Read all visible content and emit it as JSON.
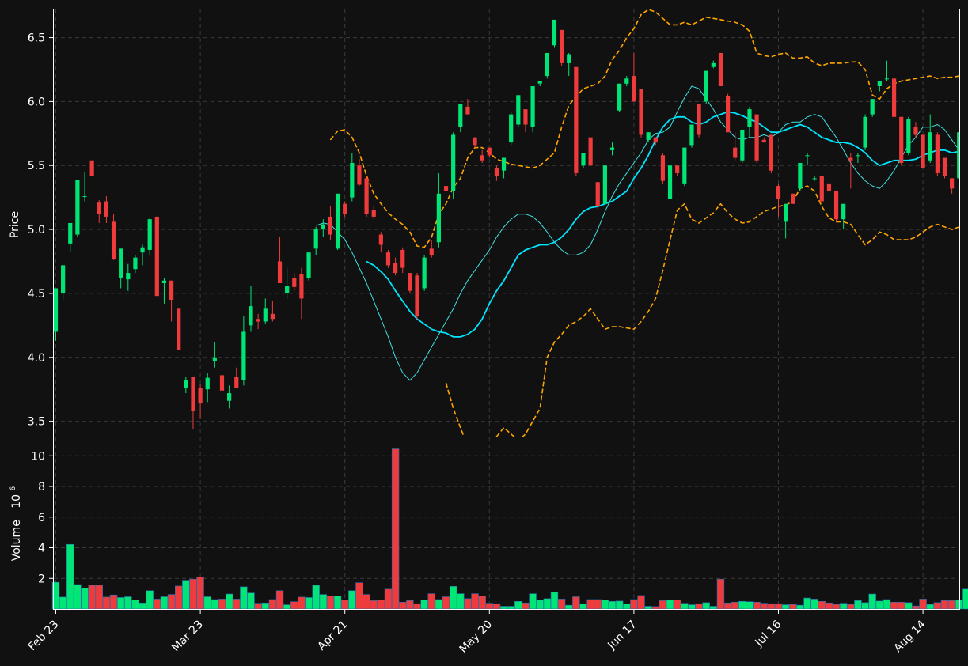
{
  "chart_data": [
    {
      "type": "candlestick",
      "ylabel": "Price",
      "ylim": [
        3.38,
        6.72
      ],
      "yticks": [
        "3.5",
        "4.0",
        "4.5",
        "5.0",
        "5.5",
        "6.0",
        "6.5"
      ],
      "grid": true,
      "series_meta": [
        {
          "key": "bollinger_upper",
          "style": "dashed",
          "color": "#ffa500"
        },
        {
          "key": "bollinger_lower",
          "style": "dashed",
          "color": "#ffa500"
        },
        {
          "key": "ma_short",
          "style": "solid",
          "color": "#40e0e0"
        },
        {
          "key": "ma_long",
          "style": "solid",
          "color": "#00e5ff"
        }
      ],
      "candles_ohlc": [
        [
          4.2,
          4.54,
          4.13,
          4.54
        ],
        [
          4.5,
          4.72,
          4.45,
          4.72
        ],
        [
          4.89,
          5.05,
          4.82,
          5.05
        ],
        [
          4.96,
          5.39,
          4.94,
          5.39
        ],
        [
          5.26,
          5.45,
          5.22,
          5.26
        ],
        [
          5.54,
          5.54,
          5.42,
          5.42
        ],
        [
          5.21,
          5.23,
          5.05,
          5.12
        ],
        [
          5.22,
          5.26,
          5.05,
          5.1
        ],
        [
          5.06,
          5.12,
          4.76,
          4.77
        ],
        [
          4.62,
          4.85,
          4.54,
          4.85
        ],
        [
          4.61,
          4.73,
          4.52,
          4.66
        ],
        [
          4.69,
          4.8,
          4.66,
          4.78
        ],
        [
          4.82,
          4.88,
          4.72,
          4.86
        ],
        [
          4.84,
          5.09,
          4.8,
          5.08
        ],
        [
          5.1,
          5.1,
          4.48,
          4.48
        ],
        [
          4.58,
          4.62,
          4.42,
          4.6
        ],
        [
          4.6,
          4.6,
          4.28,
          4.45
        ],
        [
          4.38,
          4.38,
          4.06,
          4.06
        ],
        [
          3.76,
          3.85,
          3.72,
          3.82
        ],
        [
          3.85,
          3.85,
          3.44,
          3.58
        ],
        [
          3.76,
          3.79,
          3.52,
          3.64
        ],
        [
          3.75,
          3.88,
          3.65,
          3.84
        ],
        [
          3.97,
          4.12,
          3.92,
          4.0
        ],
        [
          3.86,
          3.86,
          3.61,
          3.74
        ],
        [
          3.66,
          3.78,
          3.6,
          3.72
        ],
        [
          3.85,
          3.92,
          3.76,
          3.76
        ],
        [
          3.82,
          4.32,
          3.78,
          4.2
        ],
        [
          4.25,
          4.56,
          4.2,
          4.4
        ],
        [
          4.3,
          4.34,
          4.22,
          4.28
        ],
        [
          4.28,
          4.46,
          4.26,
          4.38
        ],
        [
          4.34,
          4.44,
          4.28,
          4.3
        ],
        [
          4.75,
          4.94,
          4.58,
          4.58
        ],
        [
          4.5,
          4.7,
          4.46,
          4.56
        ],
        [
          4.62,
          4.66,
          4.52,
          4.55
        ],
        [
          4.65,
          4.7,
          4.3,
          4.46
        ],
        [
          4.62,
          4.82,
          4.6,
          4.82
        ],
        [
          4.85,
          5.02,
          4.8,
          5.0
        ],
        [
          5.0,
          5.08,
          4.94,
          5.04
        ],
        [
          5.1,
          5.18,
          4.92,
          4.96
        ],
        [
          4.85,
          5.28,
          4.84,
          5.28
        ],
        [
          5.2,
          5.22,
          5.1,
          5.12
        ],
        [
          5.25,
          5.6,
          5.22,
          5.52
        ],
        [
          5.5,
          5.55,
          5.34,
          5.35
        ],
        [
          5.4,
          5.42,
          5.1,
          5.12
        ],
        [
          5.15,
          5.18,
          5.08,
          5.1
        ],
        [
          4.96,
          4.98,
          4.82,
          4.88
        ],
        [
          4.82,
          4.84,
          4.7,
          4.72
        ],
        [
          4.74,
          4.78,
          4.64,
          4.66
        ],
        [
          4.84,
          4.86,
          4.66,
          4.7
        ],
        [
          4.66,
          4.66,
          4.5,
          4.52
        ],
        [
          4.64,
          4.66,
          4.3,
          4.32
        ],
        [
          4.54,
          4.8,
          4.52,
          4.78
        ],
        [
          4.85,
          4.92,
          4.78,
          4.8
        ],
        [
          4.9,
          5.44,
          4.86,
          5.28
        ],
        [
          5.34,
          5.38,
          5.3,
          5.3
        ],
        [
          5.3,
          5.76,
          5.24,
          5.74
        ],
        [
          5.8,
          5.98,
          5.76,
          5.98
        ],
        [
          5.96,
          6.02,
          5.9,
          5.9
        ],
        [
          5.72,
          5.72,
          5.64,
          5.66
        ],
        [
          5.58,
          5.62,
          5.52,
          5.54
        ],
        [
          5.64,
          5.64,
          5.56,
          5.58
        ],
        [
          5.48,
          5.5,
          5.38,
          5.42
        ],
        [
          5.46,
          5.56,
          5.4,
          5.56
        ],
        [
          5.68,
          5.92,
          5.66,
          5.9
        ],
        [
          5.82,
          6.05,
          5.8,
          6.05
        ],
        [
          5.94,
          5.94,
          5.76,
          5.82
        ],
        [
          5.8,
          6.12,
          5.76,
          6.12
        ],
        [
          6.14,
          6.14,
          6.12,
          6.16
        ],
        [
          6.2,
          6.38,
          6.18,
          6.38
        ],
        [
          6.44,
          6.64,
          6.42,
          6.64
        ],
        [
          6.56,
          6.56,
          6.28,
          6.3
        ],
        [
          6.3,
          6.38,
          6.2,
          6.37
        ],
        [
          6.27,
          6.27,
          5.42,
          5.44
        ],
        [
          5.5,
          5.6,
          5.48,
          5.6
        ],
        [
          5.72,
          5.72,
          5.5,
          5.5
        ],
        [
          5.37,
          5.37,
          5.15,
          5.18
        ],
        [
          5.2,
          5.5,
          5.18,
          5.5
        ],
        [
          5.62,
          5.68,
          5.58,
          5.64
        ],
        [
          5.93,
          6.14,
          5.92,
          6.14
        ],
        [
          6.14,
          6.2,
          6.12,
          6.18
        ],
        [
          6.2,
          6.38,
          6.0,
          6.0
        ],
        [
          6.1,
          6.1,
          5.72,
          5.74
        ],
        [
          5.7,
          5.76,
          5.68,
          5.76
        ],
        [
          5.72,
          5.72,
          5.66,
          5.68
        ],
        [
          5.58,
          5.6,
          5.36,
          5.38
        ],
        [
          5.24,
          5.52,
          5.22,
          5.5
        ],
        [
          5.5,
          5.5,
          5.42,
          5.44
        ],
        [
          5.36,
          5.64,
          5.34,
          5.64
        ],
        [
          5.66,
          5.82,
          5.64,
          5.82
        ],
        [
          5.98,
          5.98,
          5.72,
          5.74
        ],
        [
          6.0,
          6.24,
          5.98,
          6.24
        ],
        [
          6.27,
          6.32,
          6.26,
          6.3
        ],
        [
          6.38,
          6.38,
          6.12,
          6.12
        ],
        [
          6.04,
          6.06,
          5.76,
          5.76
        ],
        [
          5.64,
          5.76,
          5.54,
          5.56
        ],
        [
          5.54,
          5.78,
          5.52,
          5.78
        ],
        [
          5.8,
          5.96,
          5.72,
          5.94
        ],
        [
          5.9,
          5.9,
          5.52,
          5.54
        ],
        [
          5.7,
          5.72,
          5.68,
          5.68
        ],
        [
          5.74,
          5.74,
          5.44,
          5.46
        ],
        [
          5.34,
          5.36,
          5.1,
          5.24
        ],
        [
          5.06,
          5.2,
          4.93,
          5.2
        ],
        [
          5.28,
          5.28,
          5.2,
          5.2
        ],
        [
          5.32,
          5.52,
          5.3,
          5.52
        ],
        [
          5.58,
          5.6,
          5.5,
          5.58
        ],
        [
          5.4,
          5.42,
          5.38,
          5.4
        ],
        [
          5.42,
          5.42,
          5.2,
          5.22
        ],
        [
          5.36,
          5.36,
          5.3,
          5.3
        ],
        [
          5.3,
          5.3,
          5.06,
          5.08
        ],
        [
          5.08,
          5.2,
          5.0,
          5.2
        ],
        [
          5.56,
          5.6,
          5.32,
          5.54
        ],
        [
          5.58,
          5.6,
          5.52,
          5.58
        ],
        [
          5.64,
          5.9,
          5.62,
          5.88
        ],
        [
          5.9,
          6.02,
          5.88,
          6.02
        ],
        [
          6.12,
          6.16,
          6.08,
          6.16
        ],
        [
          6.18,
          6.32,
          6.16,
          6.18
        ],
        [
          6.18,
          6.18,
          5.88,
          5.88
        ],
        [
          5.88,
          5.88,
          5.5,
          5.52
        ],
        [
          5.6,
          5.88,
          5.58,
          5.86
        ],
        [
          5.8,
          5.84,
          5.72,
          5.74
        ],
        [
          5.74,
          5.74,
          5.48,
          5.48
        ],
        [
          5.54,
          5.9,
          5.52,
          5.76
        ],
        [
          5.74,
          5.76,
          5.42,
          5.44
        ],
        [
          5.56,
          5.56,
          5.4,
          5.42
        ],
        [
          5.4,
          5.4,
          5.28,
          5.32
        ],
        [
          5.4,
          5.78,
          5.38,
          5.76
        ]
      ],
      "bollinger_upper": [
        5.7,
        5.77,
        5.78,
        5.72,
        5.6,
        5.42,
        5.28,
        5.2,
        5.13,
        5.08,
        5.04,
        4.98,
        4.87,
        4.86,
        4.94,
        5.12,
        5.2,
        5.33,
        5.4,
        5.56,
        5.64,
        5.64,
        5.6,
        5.55,
        5.53,
        5.51,
        5.5,
        5.49,
        5.48,
        5.5,
        5.55,
        5.6,
        5.8,
        5.97,
        6.04,
        6.1,
        6.12,
        6.14,
        6.2,
        6.33,
        6.4,
        6.5,
        6.57,
        6.68,
        6.72,
        6.7,
        6.65,
        6.6,
        6.6,
        6.62,
        6.6,
        6.63,
        6.66,
        6.65,
        6.64,
        6.63,
        6.62,
        6.6,
        6.55,
        6.38,
        6.36,
        6.35,
        6.37,
        6.38,
        6.34,
        6.34,
        6.35,
        6.3,
        6.28,
        6.3,
        6.3,
        6.3,
        6.31,
        6.31,
        6.25,
        6.05,
        6.02,
        6.1,
        6.14,
        6.16,
        6.17,
        6.18,
        6.19,
        6.2,
        6.18,
        6.19,
        6.19,
        6.2
      ],
      "bollinger_lower": [
        3.8,
        3.6,
        3.45,
        3.3,
        3.2,
        3.1,
        3.22,
        3.38,
        3.45,
        3.4,
        3.35,
        3.4,
        3.5,
        3.6,
        4.0,
        4.12,
        4.18,
        4.25,
        4.28,
        4.32,
        4.38,
        4.3,
        4.22,
        4.24,
        4.24,
        4.23,
        4.22,
        4.28,
        4.36,
        4.46,
        4.68,
        4.92,
        5.15,
        5.2,
        5.08,
        5.05,
        5.09,
        5.13,
        5.2,
        5.13,
        5.08,
        5.05,
        5.06,
        5.1,
        5.14,
        5.16,
        5.18,
        5.19,
        5.22,
        5.32,
        5.34,
        5.3,
        5.18,
        5.09,
        5.06,
        5.06,
        5.04,
        4.96,
        4.88,
        4.92,
        4.98,
        4.96,
        4.92,
        4.92,
        4.92,
        4.94,
        4.98,
        5.02,
        5.04,
        5.02,
        5.0,
        5.02
      ],
      "ma_short": [
        5.03,
        5.05,
        5.04,
        4.98,
        4.92,
        4.82,
        4.7,
        4.58,
        4.44,
        4.3,
        4.16,
        4.0,
        3.88,
        3.82,
        3.88,
        3.98,
        4.08,
        4.18,
        4.28,
        4.38,
        4.5,
        4.6,
        4.68,
        4.76,
        4.84,
        4.94,
        5.02,
        5.08,
        5.12,
        5.12,
        5.1,
        5.05,
        4.98,
        4.9,
        4.84,
        4.8,
        4.8,
        4.82,
        4.88,
        5.0,
        5.14,
        5.26,
        5.36,
        5.44,
        5.52,
        5.6,
        5.7,
        5.75,
        5.76,
        5.8,
        5.92,
        6.03,
        6.12,
        6.1,
        6.02,
        5.94,
        5.84,
        5.78,
        5.72,
        5.7,
        5.72,
        5.72,
        5.74,
        5.72,
        5.76,
        5.82,
        5.84,
        5.84,
        5.88,
        5.9,
        5.88,
        5.8,
        5.72,
        5.62,
        5.52,
        5.44,
        5.38,
        5.34,
        5.32,
        5.38,
        5.46,
        5.56,
        5.66,
        5.72,
        5.8,
        5.8,
        5.82,
        5.78,
        5.7,
        5.62
      ],
      "ma_long": [
        4.75,
        4.72,
        4.67,
        4.61,
        4.52,
        4.44,
        4.36,
        4.3,
        4.26,
        4.22,
        4.2,
        4.19,
        4.16,
        4.16,
        4.18,
        4.22,
        4.3,
        4.42,
        4.52,
        4.6,
        4.7,
        4.8,
        4.84,
        4.86,
        4.88,
        4.88,
        4.9,
        4.94,
        5.0,
        5.08,
        5.14,
        5.17,
        5.18,
        5.2,
        5.22,
        5.26,
        5.3,
        5.4,
        5.48,
        5.58,
        5.7,
        5.8,
        5.86,
        5.88,
        5.88,
        5.84,
        5.82,
        5.84,
        5.88,
        5.9,
        5.92,
        5.91,
        5.89,
        5.86,
        5.84,
        5.8,
        5.76,
        5.76,
        5.78,
        5.8,
        5.82,
        5.8,
        5.76,
        5.72,
        5.7,
        5.68,
        5.68,
        5.67,
        5.64,
        5.6,
        5.54,
        5.5,
        5.52,
        5.54,
        5.54,
        5.54,
        5.55,
        5.58,
        5.6,
        5.62,
        5.62,
        5.6,
        5.61
      ]
    },
    {
      "type": "bar",
      "ylabel": "Volume  10^6",
      "ylabel_main": "Volume",
      "ylabel_exp_base": "10",
      "ylabel_exp": "6",
      "ylim": [
        0,
        11.2
      ],
      "yticks": [
        "2",
        "4",
        "6",
        "8",
        "10"
      ],
      "volumes_millions": [
        1.75,
        0.78,
        4.22,
        1.6,
        1.38,
        1.55,
        1.55,
        0.78,
        0.92,
        0.75,
        0.8,
        0.6,
        0.4,
        1.2,
        0.65,
        0.8,
        0.95,
        1.5,
        1.88,
        1.95,
        2.1,
        0.8,
        0.62,
        0.65,
        0.98,
        0.65,
        1.45,
        1.05,
        0.38,
        0.4,
        0.62,
        1.2,
        0.28,
        0.48,
        0.78,
        0.75,
        1.55,
        0.95,
        0.85,
        0.85,
        0.6,
        1.2,
        1.72,
        0.95,
        0.55,
        0.6,
        1.3,
        10.45,
        0.45,
        0.55,
        0.35,
        0.6,
        1.0,
        0.62,
        0.8,
        1.48,
        1.0,
        0.68,
        1.0,
        0.85,
        0.38,
        0.35,
        0.18,
        0.18,
        0.5,
        0.4,
        1.0,
        0.58,
        0.68,
        1.1,
        0.65,
        0.25,
        0.8,
        0.35,
        0.62,
        0.62,
        0.6,
        0.5,
        0.52,
        0.35,
        0.62,
        0.88,
        0.18,
        0.16,
        0.55,
        0.6,
        0.6,
        0.38,
        0.28,
        0.35,
        0.42,
        0.18,
        1.95,
        0.4,
        0.45,
        0.5,
        0.48,
        0.45,
        0.38,
        0.35,
        0.35,
        0.28,
        0.3,
        0.25,
        0.72,
        0.65,
        0.5,
        0.4,
        0.3,
        0.38,
        0.3,
        0.55,
        0.42,
        0.98,
        0.52,
        0.62,
        0.45,
        0.45,
        0.42,
        0.2,
        0.65,
        0.3,
        0.42,
        0.55,
        0.55,
        0.6,
        1.3
      ]
    }
  ],
  "x_axis": {
    "labels": [
      "Feb 23",
      "Mar 23",
      "Apr 21",
      "May 20",
      "Jun 17",
      "Jul 16",
      "Aug 14"
    ],
    "label_candle_index": [
      0,
      20,
      40,
      60,
      80,
      100,
      120
    ]
  },
  "colors": {
    "background": "#111111",
    "panel": "#121212",
    "up": "#00e676",
    "down": "#ef3b3b",
    "grid": "#3a3a3a",
    "bb": "#ffa500",
    "ma_short": "#40e0e0",
    "ma_long": "#00e5ff",
    "axes": "#ffffff"
  }
}
